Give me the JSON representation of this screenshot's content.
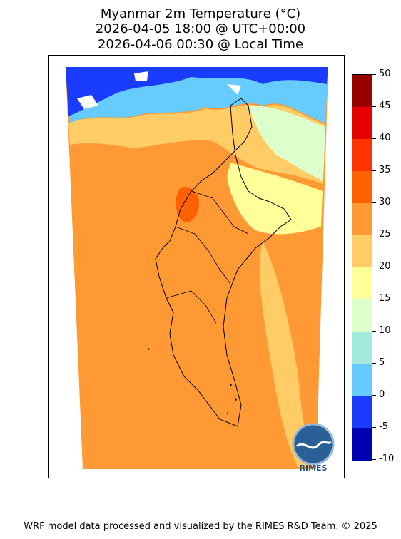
{
  "title": {
    "line1": "Myanmar 2m Temperature (°C)",
    "line2": "2026-04-05 18:00 @ UTC+00:00",
    "line3": "2026-04-06 00:30 @ Local Time"
  },
  "colorbar": {
    "ticks": [
      "50",
      "45",
      "40",
      "35",
      "30",
      "25",
      "20",
      "15",
      "10",
      "5",
      "0",
      "-5",
      "-10"
    ],
    "colors": [
      "#990000",
      "#e60000",
      "#ff3300",
      "#ff6000",
      "#ff9933",
      "#ffcc66",
      "#ffff99",
      "#ddffcc",
      "#a3eadc",
      "#66ccff",
      "#1a3cff",
      "#0000b3"
    ]
  },
  "logo": {
    "text": "RIMES"
  },
  "footer": {
    "text": "WRF model data processed and visualized by the RIMES R&D Team. © 2025"
  }
}
